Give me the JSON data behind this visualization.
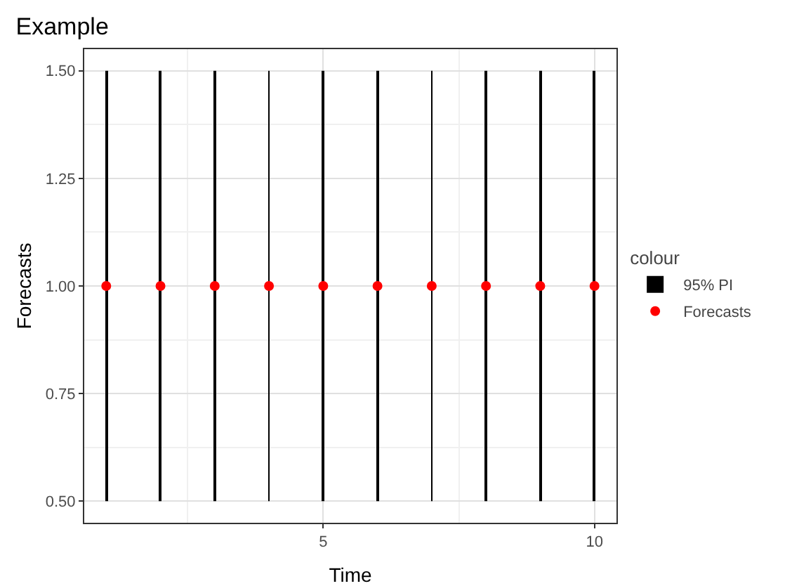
{
  "chart_data": {
    "type": "scatter",
    "title": "Example",
    "xlabel": "Time",
    "ylabel": "Forecasts",
    "legend_title": "colour",
    "x": [
      1,
      2,
      3,
      4,
      5,
      6,
      7,
      8,
      9,
      10
    ],
    "series": [
      {
        "name": "95% PI",
        "type": "bar",
        "color": "#000000",
        "base": [
          0.5,
          0.5,
          0.5,
          0.5,
          0.5,
          0.5,
          0.5,
          0.5,
          0.5,
          0.5
        ],
        "values": [
          1.0,
          1.0,
          1.0,
          1.0,
          1.0,
          1.0,
          1.0,
          1.0,
          1.0,
          1.0
        ]
      },
      {
        "name": "Forecasts",
        "color": "#ff0000",
        "values": [
          1.0,
          1.0,
          1.0,
          1.0,
          1.0,
          1.0,
          1.0,
          1.0,
          1.0,
          1.0
        ]
      }
    ],
    "xlim": [
      0.595,
      10.405
    ],
    "xticks": [
      {
        "value": 2.5,
        "label": null
      },
      5,
      {
        "value": 7.5,
        "label": null
      },
      10
    ],
    "ylim": [
      0.45,
      1.55
    ],
    "yticks": [
      {
        "value": 0.5,
        "label": "0.50"
      },
      {
        "value": 0.625,
        "label": null
      },
      {
        "value": 0.75,
        "label": "0.75"
      },
      {
        "value": 0.875,
        "label": null
      },
      {
        "value": 1.0,
        "label": "1.00"
      },
      {
        "value": 1.125,
        "label": null
      },
      {
        "value": 1.25,
        "label": "1.25"
      },
      {
        "value": 1.375,
        "label": null
      },
      {
        "value": 1.5,
        "label": "1.50"
      }
    ],
    "grid": true,
    "legend": "right",
    "marker": "circle"
  }
}
